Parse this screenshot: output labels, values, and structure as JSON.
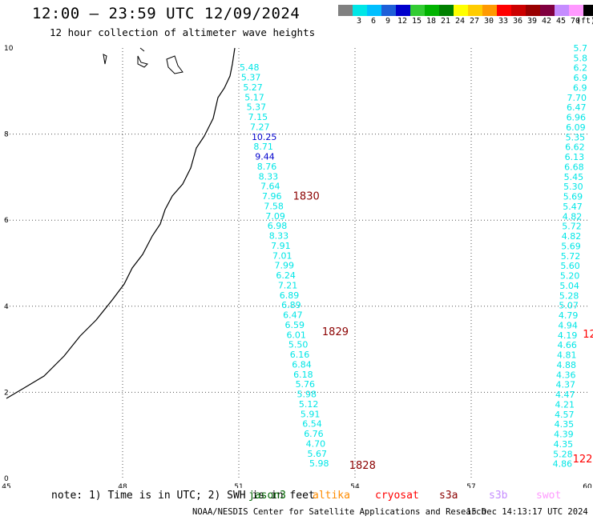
{
  "header": {
    "title": "12:00 – 23:59 UTC 12/09/2024",
    "subtitle": "12 hour collection of altimeter wave heights"
  },
  "legend": {
    "unit": "(ft)",
    "entries": [
      {
        "label": "",
        "color": "#808080"
      },
      {
        "label": "3",
        "color": "#00e6e6"
      },
      {
        "label": "6",
        "color": "#00bfff"
      },
      {
        "label": "9",
        "color": "#1e5fd8"
      },
      {
        "label": "12",
        "color": "#0000cc"
      },
      {
        "label": "15",
        "color": "#33cc33"
      },
      {
        "label": "18",
        "color": "#00b300"
      },
      {
        "label": "21",
        "color": "#008000"
      },
      {
        "label": "24",
        "color": "#ffff00"
      },
      {
        "label": "27",
        "color": "#ffcc00"
      },
      {
        "label": "30",
        "color": "#ff9900"
      },
      {
        "label": "33",
        "color": "#ff0000"
      },
      {
        "label": "36",
        "color": "#cc0000"
      },
      {
        "label": "39",
        "color": "#990000"
      },
      {
        "label": "42",
        "color": "#800040"
      },
      {
        "label": "45",
        "color": "#c58cff"
      },
      {
        "label": "70",
        "color": "#ff99ff"
      },
      {
        "label": "",
        "color": "#000000"
      }
    ]
  },
  "note": "note: 1) Time is in UTC; 2) SWH is in feet",
  "satellites": [
    {
      "name": "jason3",
      "color": "#006400"
    },
    {
      "name": "altika",
      "color": "#ff8c00"
    },
    {
      "name": "cryosat",
      "color": "#ff0000"
    },
    {
      "name": "s3a",
      "color": "#8b0000"
    },
    {
      "name": "s3b",
      "color": "#c58cff"
    },
    {
      "name": "swot",
      "color": "#ff99ff"
    }
  ],
  "footer": "NOAA/NESDIS Center for Satellite Applications and Research",
  "footer_time": "15 Dec 14:13:17 UTC 2024",
  "chart_data": {
    "type": "scatter",
    "title": "12:00 – 23:59 UTC 12/09/2024",
    "subtitle": "12 hour collection of altimeter wave heights",
    "x_ticks": [
      45,
      48,
      51,
      54,
      57,
      60
    ],
    "y_ticks": [
      0,
      2,
      4,
      6,
      8,
      10
    ],
    "xlim": [
      45,
      60
    ],
    "ylim": [
      0,
      10
    ],
    "grid": true,
    "track1": {
      "color": "#00e6e6",
      "points": [
        {
          "x": 51.02,
          "y": 9.55,
          "v": "5.48"
        },
        {
          "x": 51.06,
          "y": 9.32,
          "v": "5.37"
        },
        {
          "x": 51.11,
          "y": 9.09,
          "v": "5.27"
        },
        {
          "x": 51.15,
          "y": 8.86,
          "v": "5.17"
        },
        {
          "x": 51.2,
          "y": 8.63,
          "v": "5.37"
        },
        {
          "x": 51.24,
          "y": 8.4,
          "v": "7.15"
        },
        {
          "x": 51.29,
          "y": 8.17,
          "v": "7.27"
        },
        {
          "x": 51.33,
          "y": 7.94,
          "v": "10.25",
          "c": "#0000cc"
        },
        {
          "x": 51.38,
          "y": 7.71,
          "v": "8.71"
        },
        {
          "x": 51.42,
          "y": 7.48,
          "v": "9.44",
          "c": "#0000cc"
        },
        {
          "x": 51.47,
          "y": 7.25,
          "v": "8.76"
        },
        {
          "x": 51.51,
          "y": 7.02,
          "v": "8.33"
        },
        {
          "x": 51.56,
          "y": 6.79,
          "v": "7.64"
        },
        {
          "x": 51.6,
          "y": 6.56,
          "v": "7.96"
        },
        {
          "x": 51.65,
          "y": 6.33,
          "v": "7.58"
        },
        {
          "x": 51.69,
          "y": 6.1,
          "v": "7.09"
        },
        {
          "x": 51.74,
          "y": 5.87,
          "v": "6.98"
        },
        {
          "x": 51.78,
          "y": 5.64,
          "v": "8.33"
        },
        {
          "x": 51.83,
          "y": 5.41,
          "v": "7.91"
        },
        {
          "x": 51.87,
          "y": 5.18,
          "v": "7.01"
        },
        {
          "x": 51.92,
          "y": 4.95,
          "v": "7.99"
        },
        {
          "x": 51.96,
          "y": 4.72,
          "v": "6.24"
        },
        {
          "x": 52.01,
          "y": 4.49,
          "v": "7.21"
        },
        {
          "x": 52.05,
          "y": 4.26,
          "v": "6.89"
        },
        {
          "x": 52.1,
          "y": 4.03,
          "v": "6.89"
        },
        {
          "x": 52.14,
          "y": 3.8,
          "v": "6.47"
        },
        {
          "x": 52.19,
          "y": 3.57,
          "v": "6.59"
        },
        {
          "x": 52.23,
          "y": 3.34,
          "v": "6.01"
        },
        {
          "x": 52.28,
          "y": 3.11,
          "v": "5.50"
        },
        {
          "x": 52.32,
          "y": 2.88,
          "v": "6.16"
        },
        {
          "x": 52.37,
          "y": 2.65,
          "v": "6.84"
        },
        {
          "x": 52.41,
          "y": 2.42,
          "v": "6.18"
        },
        {
          "x": 52.46,
          "y": 2.19,
          "v": "5.76"
        },
        {
          "x": 52.5,
          "y": 1.96,
          "v": "5.98"
        },
        {
          "x": 52.55,
          "y": 1.73,
          "v": "5.12"
        },
        {
          "x": 52.59,
          "y": 1.5,
          "v": "5.91"
        },
        {
          "x": 52.64,
          "y": 1.27,
          "v": "6.54"
        },
        {
          "x": 52.68,
          "y": 1.04,
          "v": "6.76"
        },
        {
          "x": 52.73,
          "y": 0.81,
          "v": "4.70"
        },
        {
          "x": 52.77,
          "y": 0.58,
          "v": "5.67"
        },
        {
          "x": 52.82,
          "y": 0.35,
          "v": "5.98"
        }
      ]
    },
    "track2": {
      "color": "#00e6e6",
      "points": [
        {
          "x": 60.0,
          "y": 10.0,
          "v": "5.7"
        },
        {
          "x": 60.0,
          "y": 9.77,
          "v": "5.8"
        },
        {
          "x": 60.0,
          "y": 9.54,
          "v": "6.2"
        },
        {
          "x": 60.0,
          "y": 9.31,
          "v": "6.9"
        },
        {
          "x": 59.99,
          "y": 9.08,
          "v": "6.9"
        },
        {
          "x": 59.98,
          "y": 8.85,
          "v": "7.70"
        },
        {
          "x": 59.97,
          "y": 8.62,
          "v": "6.47"
        },
        {
          "x": 59.96,
          "y": 8.39,
          "v": "6.96"
        },
        {
          "x": 59.95,
          "y": 8.16,
          "v": "6.09"
        },
        {
          "x": 59.94,
          "y": 7.93,
          "v": "5.35"
        },
        {
          "x": 59.93,
          "y": 7.7,
          "v": "6.62"
        },
        {
          "x": 59.92,
          "y": 7.47,
          "v": "6.13"
        },
        {
          "x": 59.91,
          "y": 7.24,
          "v": "6.68"
        },
        {
          "x": 59.9,
          "y": 7.01,
          "v": "5.45"
        },
        {
          "x": 59.89,
          "y": 6.78,
          "v": "5.30"
        },
        {
          "x": 59.88,
          "y": 6.55,
          "v": "5.69"
        },
        {
          "x": 59.87,
          "y": 6.32,
          "v": "5.47"
        },
        {
          "x": 59.86,
          "y": 6.09,
          "v": "4.82"
        },
        {
          "x": 59.85,
          "y": 5.86,
          "v": "5.72"
        },
        {
          "x": 59.84,
          "y": 5.63,
          "v": "4.82"
        },
        {
          "x": 59.83,
          "y": 5.4,
          "v": "5.69"
        },
        {
          "x": 59.82,
          "y": 5.17,
          "v": "5.72"
        },
        {
          "x": 59.81,
          "y": 4.94,
          "v": "5.60"
        },
        {
          "x": 59.8,
          "y": 4.71,
          "v": "5.20"
        },
        {
          "x": 59.79,
          "y": 4.48,
          "v": "5.04"
        },
        {
          "x": 59.78,
          "y": 4.25,
          "v": "5.28"
        },
        {
          "x": 59.77,
          "y": 4.02,
          "v": "5.07"
        },
        {
          "x": 59.76,
          "y": 3.79,
          "v": "4.79"
        },
        {
          "x": 59.75,
          "y": 3.56,
          "v": "4.94"
        },
        {
          "x": 59.74,
          "y": 3.33,
          "v": "4.19"
        },
        {
          "x": 59.73,
          "y": 3.1,
          "v": "4.66"
        },
        {
          "x": 59.72,
          "y": 2.87,
          "v": "4.81"
        },
        {
          "x": 59.71,
          "y": 2.64,
          "v": "4.88"
        },
        {
          "x": 59.7,
          "y": 2.41,
          "v": "4.36"
        },
        {
          "x": 59.69,
          "y": 2.18,
          "v": "4.37"
        },
        {
          "x": 59.68,
          "y": 1.95,
          "v": "4.47"
        },
        {
          "x": 59.67,
          "y": 1.72,
          "v": "4.21"
        },
        {
          "x": 59.66,
          "y": 1.49,
          "v": "4.57"
        },
        {
          "x": 59.65,
          "y": 1.26,
          "v": "4.35"
        },
        {
          "x": 59.64,
          "y": 1.03,
          "v": "4.39"
        },
        {
          "x": 59.63,
          "y": 0.8,
          "v": "4.35"
        },
        {
          "x": 59.62,
          "y": 0.57,
          "v": "5.28"
        },
        {
          "x": 59.61,
          "y": 0.34,
          "v": "4.86"
        }
      ]
    },
    "time_labels": [
      {
        "x": 52.4,
        "y": 6.55,
        "text": "1830",
        "color": "#8b0000"
      },
      {
        "x": 53.15,
        "y": 3.4,
        "text": "1829",
        "color": "#8b0000"
      },
      {
        "x": 53.85,
        "y": 0.3,
        "text": "1828",
        "color": "#8b0000"
      },
      {
        "x": 59.88,
        "y": 3.35,
        "text": "12",
        "color": "#ff0000"
      },
      {
        "x": 59.62,
        "y": 0.45,
        "text": "122",
        "color": "#ff0000"
      }
    ]
  }
}
